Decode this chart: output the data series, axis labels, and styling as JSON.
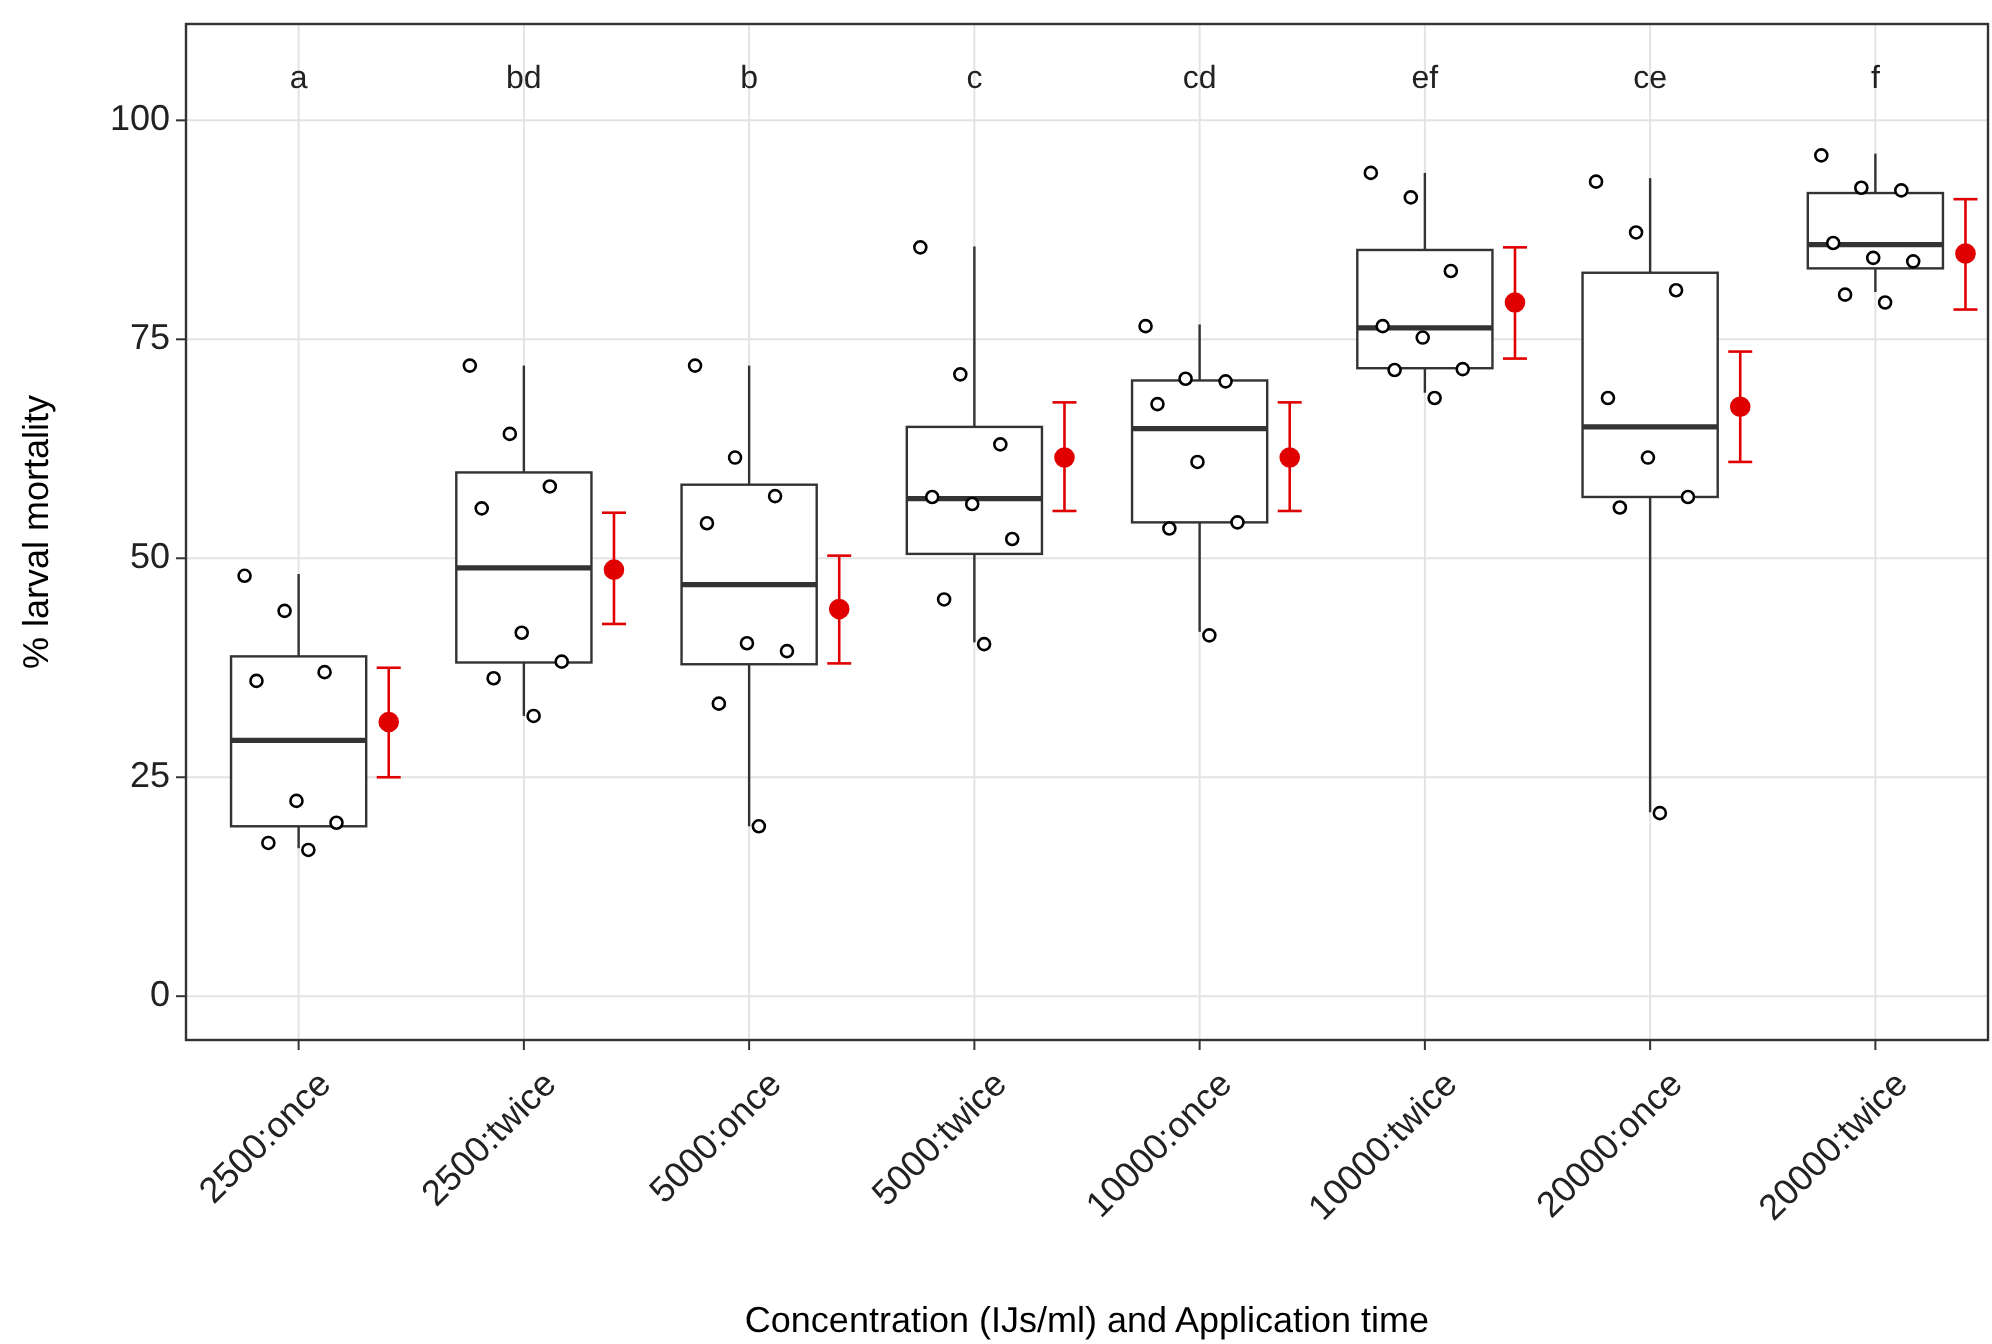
{
  "chart_data": {
    "type": "box",
    "xlabel": "Concentration (IJs/ml) and Application time",
    "ylabel": "% larval mortality",
    "categories": [
      "2500:once",
      "2500:twice",
      "5000:once",
      "5000:twice",
      "10000:once",
      "10000:twice",
      "20000:once",
      "20000:twice"
    ],
    "boxes": [
      {
        "low": 16.9,
        "q1": 19.4,
        "median": 29.2,
        "q3": 38.8,
        "high": 48.2
      },
      {
        "low": 32,
        "q1": 38.1,
        "median": 48.9,
        "q3": 59.8,
        "high": 72
      },
      {
        "low": 19.4,
        "q1": 37.9,
        "median": 47,
        "q3": 58.4,
        "high": 72
      },
      {
        "low": 40.4,
        "q1": 50.5,
        "median": 56.8,
        "q3": 65,
        "high": 85.6
      },
      {
        "low": 41.6,
        "q1": 54.1,
        "median": 64.8,
        "q3": 70.3,
        "high": 76.7
      },
      {
        "low": 68.9,
        "q1": 71.7,
        "median": 76.3,
        "q3": 85.2,
        "high": 94
      },
      {
        "low": 21,
        "q1": 57,
        "median": 65,
        "q3": 82.6,
        "high": 93.4
      },
      {
        "low": 80.4,
        "q1": 83.1,
        "median": 85.8,
        "q3": 91.7,
        "high": 96.2
      }
    ],
    "series": [
      {
        "type": "scatter",
        "color": "#000000",
        "marker": "circle",
        "x": [
          "2500:once",
          "2500:once",
          "2500:once",
          "2500:once",
          "2500:once",
          "2500:once",
          "2500:once",
          "2500:once",
          "2500:twice",
          "2500:twice",
          "2500:twice",
          "2500:twice",
          "2500:twice",
          "2500:twice",
          "2500:twice",
          "2500:twice",
          "5000:once",
          "5000:once",
          "5000:once",
          "5000:once",
          "5000:once",
          "5000:once",
          "5000:once",
          "5000:once",
          "5000:twice",
          "5000:twice",
          "5000:twice",
          "5000:twice",
          "5000:twice",
          "5000:twice",
          "5000:twice",
          "5000:twice",
          "10000:once",
          "10000:once",
          "10000:once",
          "10000:once",
          "10000:once",
          "10000:once",
          "10000:once",
          "10000:once",
          "10000:twice",
          "10000:twice",
          "10000:twice",
          "10000:twice",
          "10000:twice",
          "10000:twice",
          "10000:twice",
          "10000:twice",
          "20000:once",
          "20000:once",
          "20000:once",
          "20000:once",
          "20000:once",
          "20000:once",
          "20000:once",
          "20000:once",
          "20000:twice",
          "20000:twice",
          "20000:twice",
          "20000:twice",
          "20000:twice",
          "20000:twice",
          "20000:twice",
          "20000:twice"
        ],
        "values": [
          48,
          44,
          37,
          36,
          22.3,
          19.8,
          17.5,
          16.7,
          72,
          64.2,
          58.2,
          55.7,
          41.5,
          38.2,
          36.3,
          32,
          72,
          61.5,
          57.1,
          54,
          40.3,
          39.4,
          33.4,
          19.4,
          85.5,
          71,
          63,
          57,
          56.2,
          52.2,
          45.3,
          40.2,
          76.5,
          70.5,
          70.2,
          67.6,
          61,
          54.1,
          53.4,
          41.2,
          94,
          91.2,
          82.8,
          76.5,
          75.2,
          71.6,
          71.5,
          68.3,
          93,
          87.2,
          80.6,
          68.3,
          61.5,
          57,
          55.8,
          20.9,
          96,
          92.3,
          92,
          86,
          84.3,
          83.9,
          80.1,
          79.2
        ]
      },
      {
        "type": "scatter",
        "color": "#e00000",
        "marker": "circle",
        "x": [
          "2500:once",
          "2500:twice",
          "5000:once",
          "5000:twice",
          "10000:once",
          "10000:twice",
          "20000:once",
          "20000:twice"
        ],
        "values": [
          31.3,
          48.7,
          44.2,
          61.5,
          61.5,
          79.2,
          67.3,
          84.8
        ],
        "errors": [
          [
            25,
            37.5
          ],
          [
            42.5,
            55.2
          ],
          [
            38,
            50.3
          ],
          [
            55.4,
            67.8
          ],
          [
            55.4,
            67.8
          ],
          [
            72.8,
            85.5
          ],
          [
            61,
            73.6
          ],
          [
            78.4,
            91
          ]
        ]
      }
    ],
    "annotations": [
      "a",
      "bd",
      "b",
      "c",
      "cd",
      "ef",
      "ce",
      "f"
    ],
    "ylim": [
      -5,
      111
    ],
    "yticks": [
      0,
      25,
      50,
      75,
      100
    ],
    "grid": true
  }
}
